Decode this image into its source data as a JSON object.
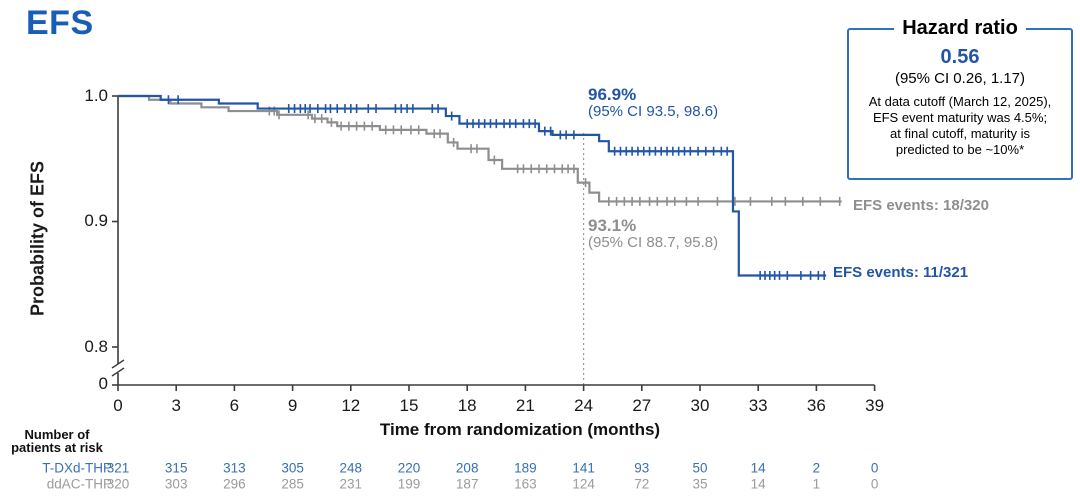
{
  "title": "EFS",
  "colors": {
    "blue": "#2255a4",
    "gray": "#8e8e8e",
    "title_blue": "#1a5db5",
    "table_blue": "#3a6fb5",
    "table_gray": "#9b9b9b",
    "box_border": "#2e74b5",
    "axis": "#3c3c3c",
    "ref_line": "#9a9a9a"
  },
  "hazard_box": {
    "title": "Hazard ratio",
    "value": "0.56",
    "ci": "(95% CI 0.26, 1.17)",
    "note_lines": [
      "At data cutoff (March 12, 2025),",
      "EFS event maturity was 4.5%;",
      "at final cutoff, maturity is",
      "predicted to be ~10%*"
    ]
  },
  "annotations": {
    "tdxd_pct": "96.9%",
    "tdxd_ci": "(95% CI 93.5, 98.6)",
    "ddac_pct": "93.1%",
    "ddac_ci": "(95% CI 88.7, 95.8)",
    "tdxd_events": "EFS events: 11/321",
    "ddac_events": "EFS events: 18/320"
  },
  "axes": {
    "ylabel": "Probability of EFS",
    "xlabel": "Time from randomization (months)",
    "ytick_labels": [
      "1.0",
      "0.9",
      "0.8",
      "0"
    ],
    "xtick_labels": [
      "0",
      "3",
      "6",
      "9",
      "12",
      "15",
      "18",
      "21",
      "24",
      "27",
      "30",
      "33",
      "36",
      "39"
    ]
  },
  "risk_table": {
    "header_lines": [
      "Number of",
      "patients at risk"
    ],
    "rows": [
      {
        "label": "T-DXd-THP",
        "values": [
          "321",
          "315",
          "313",
          "305",
          "248",
          "220",
          "208",
          "189",
          "141",
          "93",
          "50",
          "14",
          "2",
          "0"
        ]
      },
      {
        "label": "ddAC-THP",
        "values": [
          "320",
          "303",
          "296",
          "285",
          "231",
          "199",
          "187",
          "163",
          "124",
          "72",
          "35",
          "14",
          "1",
          "0"
        ]
      }
    ]
  },
  "chart_data": {
    "type": "line",
    "subtype": "kaplan-meier-step",
    "title": "EFS",
    "xlabel": "Time from randomization (months)",
    "ylabel": "Probability of EFS",
    "xlim": [
      0,
      39
    ],
    "xtick_interval": 3,
    "yticks_shown": [
      1.0,
      0.9,
      0.8,
      0
    ],
    "y_axis_break": true,
    "reference_line_x": 24,
    "legend_position": "end-of-curve labels",
    "grid": false,
    "series": [
      {
        "name": "T-DXd-THP",
        "color": "#2255a4",
        "events": "11/321",
        "landmark_24mo_pct": 96.9,
        "landmark_24mo_ci": [
          93.5,
          98.6
        ],
        "end_month": 36.5,
        "steps": [
          [
            0,
            1.0
          ],
          [
            2.2,
            0.997
          ],
          [
            5.2,
            0.994
          ],
          [
            7.2,
            0.99
          ],
          [
            16.9,
            0.984
          ],
          [
            17.6,
            0.978
          ],
          [
            21.7,
            0.972
          ],
          [
            22.4,
            0.969
          ],
          [
            24.8,
            0.964
          ],
          [
            25.3,
            0.956
          ],
          [
            31.7,
            0.908
          ],
          [
            32.0,
            0.857
          ]
        ],
        "censor_months": [
          2.6,
          3.1,
          8.8,
          9.1,
          9.4,
          9.65,
          9.9,
          10.3,
          10.7,
          10.95,
          11.3,
          11.7,
          12.0,
          12.3,
          12.9,
          13.3,
          14.3,
          14.6,
          14.9,
          15.2,
          16.2,
          16.5,
          17.2,
          18.0,
          18.3,
          18.6,
          18.9,
          19.2,
          19.5,
          19.9,
          20.2,
          20.5,
          20.9,
          21.2,
          21.5,
          22.0,
          22.3,
          22.8,
          23.1,
          23.5,
          25.6,
          25.9,
          26.2,
          26.5,
          26.8,
          27.1,
          27.4,
          27.7,
          28.0,
          28.3,
          28.6,
          28.9,
          29.2,
          29.5,
          29.9,
          30.3,
          30.7,
          31.1,
          31.4,
          33.1,
          33.35,
          33.6,
          33.85,
          34.1,
          34.5,
          35.2,
          35.7,
          36.1,
          36.4
        ]
      },
      {
        "name": "ddAC-THP",
        "color": "#8e8e8e",
        "events": "18/320",
        "landmark_24mo_pct": 93.1,
        "landmark_24mo_ci": [
          88.7,
          95.8
        ],
        "end_month": 37.3,
        "steps": [
          [
            0,
            1.0
          ],
          [
            1.6,
            0.997
          ],
          [
            2.7,
            0.994
          ],
          [
            4.3,
            0.991
          ],
          [
            5.7,
            0.988
          ],
          [
            8.2,
            0.985
          ],
          [
            10.0,
            0.982
          ],
          [
            10.8,
            0.979
          ],
          [
            11.3,
            0.976
          ],
          [
            13.5,
            0.973
          ],
          [
            15.9,
            0.97
          ],
          [
            17.0,
            0.963
          ],
          [
            17.5,
            0.958
          ],
          [
            19.1,
            0.949
          ],
          [
            19.8,
            0.942
          ],
          [
            23.7,
            0.931
          ],
          [
            24.3,
            0.923
          ],
          [
            24.8,
            0.916
          ]
        ],
        "censor_months": [
          7.8,
          8.05,
          8.3,
          9.8,
          10.15,
          10.5,
          11.0,
          11.5,
          11.9,
          12.3,
          12.7,
          13.1,
          13.8,
          14.2,
          14.6,
          15.1,
          15.5,
          16.3,
          16.6,
          17.3,
          18.2,
          18.5,
          19.4,
          20.6,
          20.9,
          21.3,
          21.7,
          22.1,
          22.5,
          22.9,
          23.2,
          23.5,
          24.1,
          25.3,
          25.7,
          26.1,
          26.5,
          26.9,
          27.4,
          27.8,
          28.3,
          28.7,
          29.3,
          29.9,
          30.9,
          31.8,
          32.6,
          33.7,
          34.4,
          35.3,
          36.2,
          37.2
        ]
      }
    ]
  }
}
